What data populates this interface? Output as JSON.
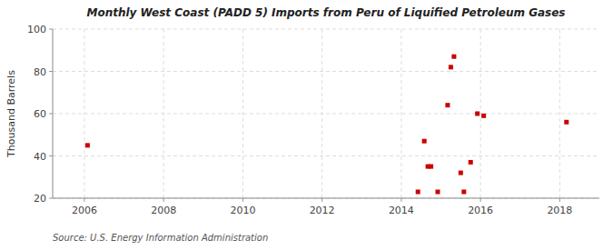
{
  "chart_data": {
    "type": "scatter",
    "title": "Monthly West Coast (PADD 5) Imports from Peru of Liquified Petroleum Gases",
    "ylabel": "Thousand Barrels",
    "source": "Source: U.S. Energy Information Administration",
    "x": [
      2006.08,
      2014.42,
      2014.58,
      2014.67,
      2014.75,
      2014.92,
      2015.17,
      2015.25,
      2015.33,
      2015.5,
      2015.58,
      2015.75,
      2015.92,
      2016.08,
      2018.17
    ],
    "values": [
      45,
      23,
      47,
      35,
      35,
      23,
      64,
      82,
      87,
      32,
      23,
      37,
      60,
      59,
      56
    ],
    "color": "#cc0000",
    "marker": "square",
    "xlim": [
      2005.2,
      2019.0
    ],
    "ylim": [
      20,
      100
    ],
    "xticks": [
      2006,
      2008,
      2010,
      2012,
      2014,
      2016,
      2018
    ],
    "yticks": [
      20,
      40,
      60,
      80,
      100
    ],
    "grid": true
  }
}
